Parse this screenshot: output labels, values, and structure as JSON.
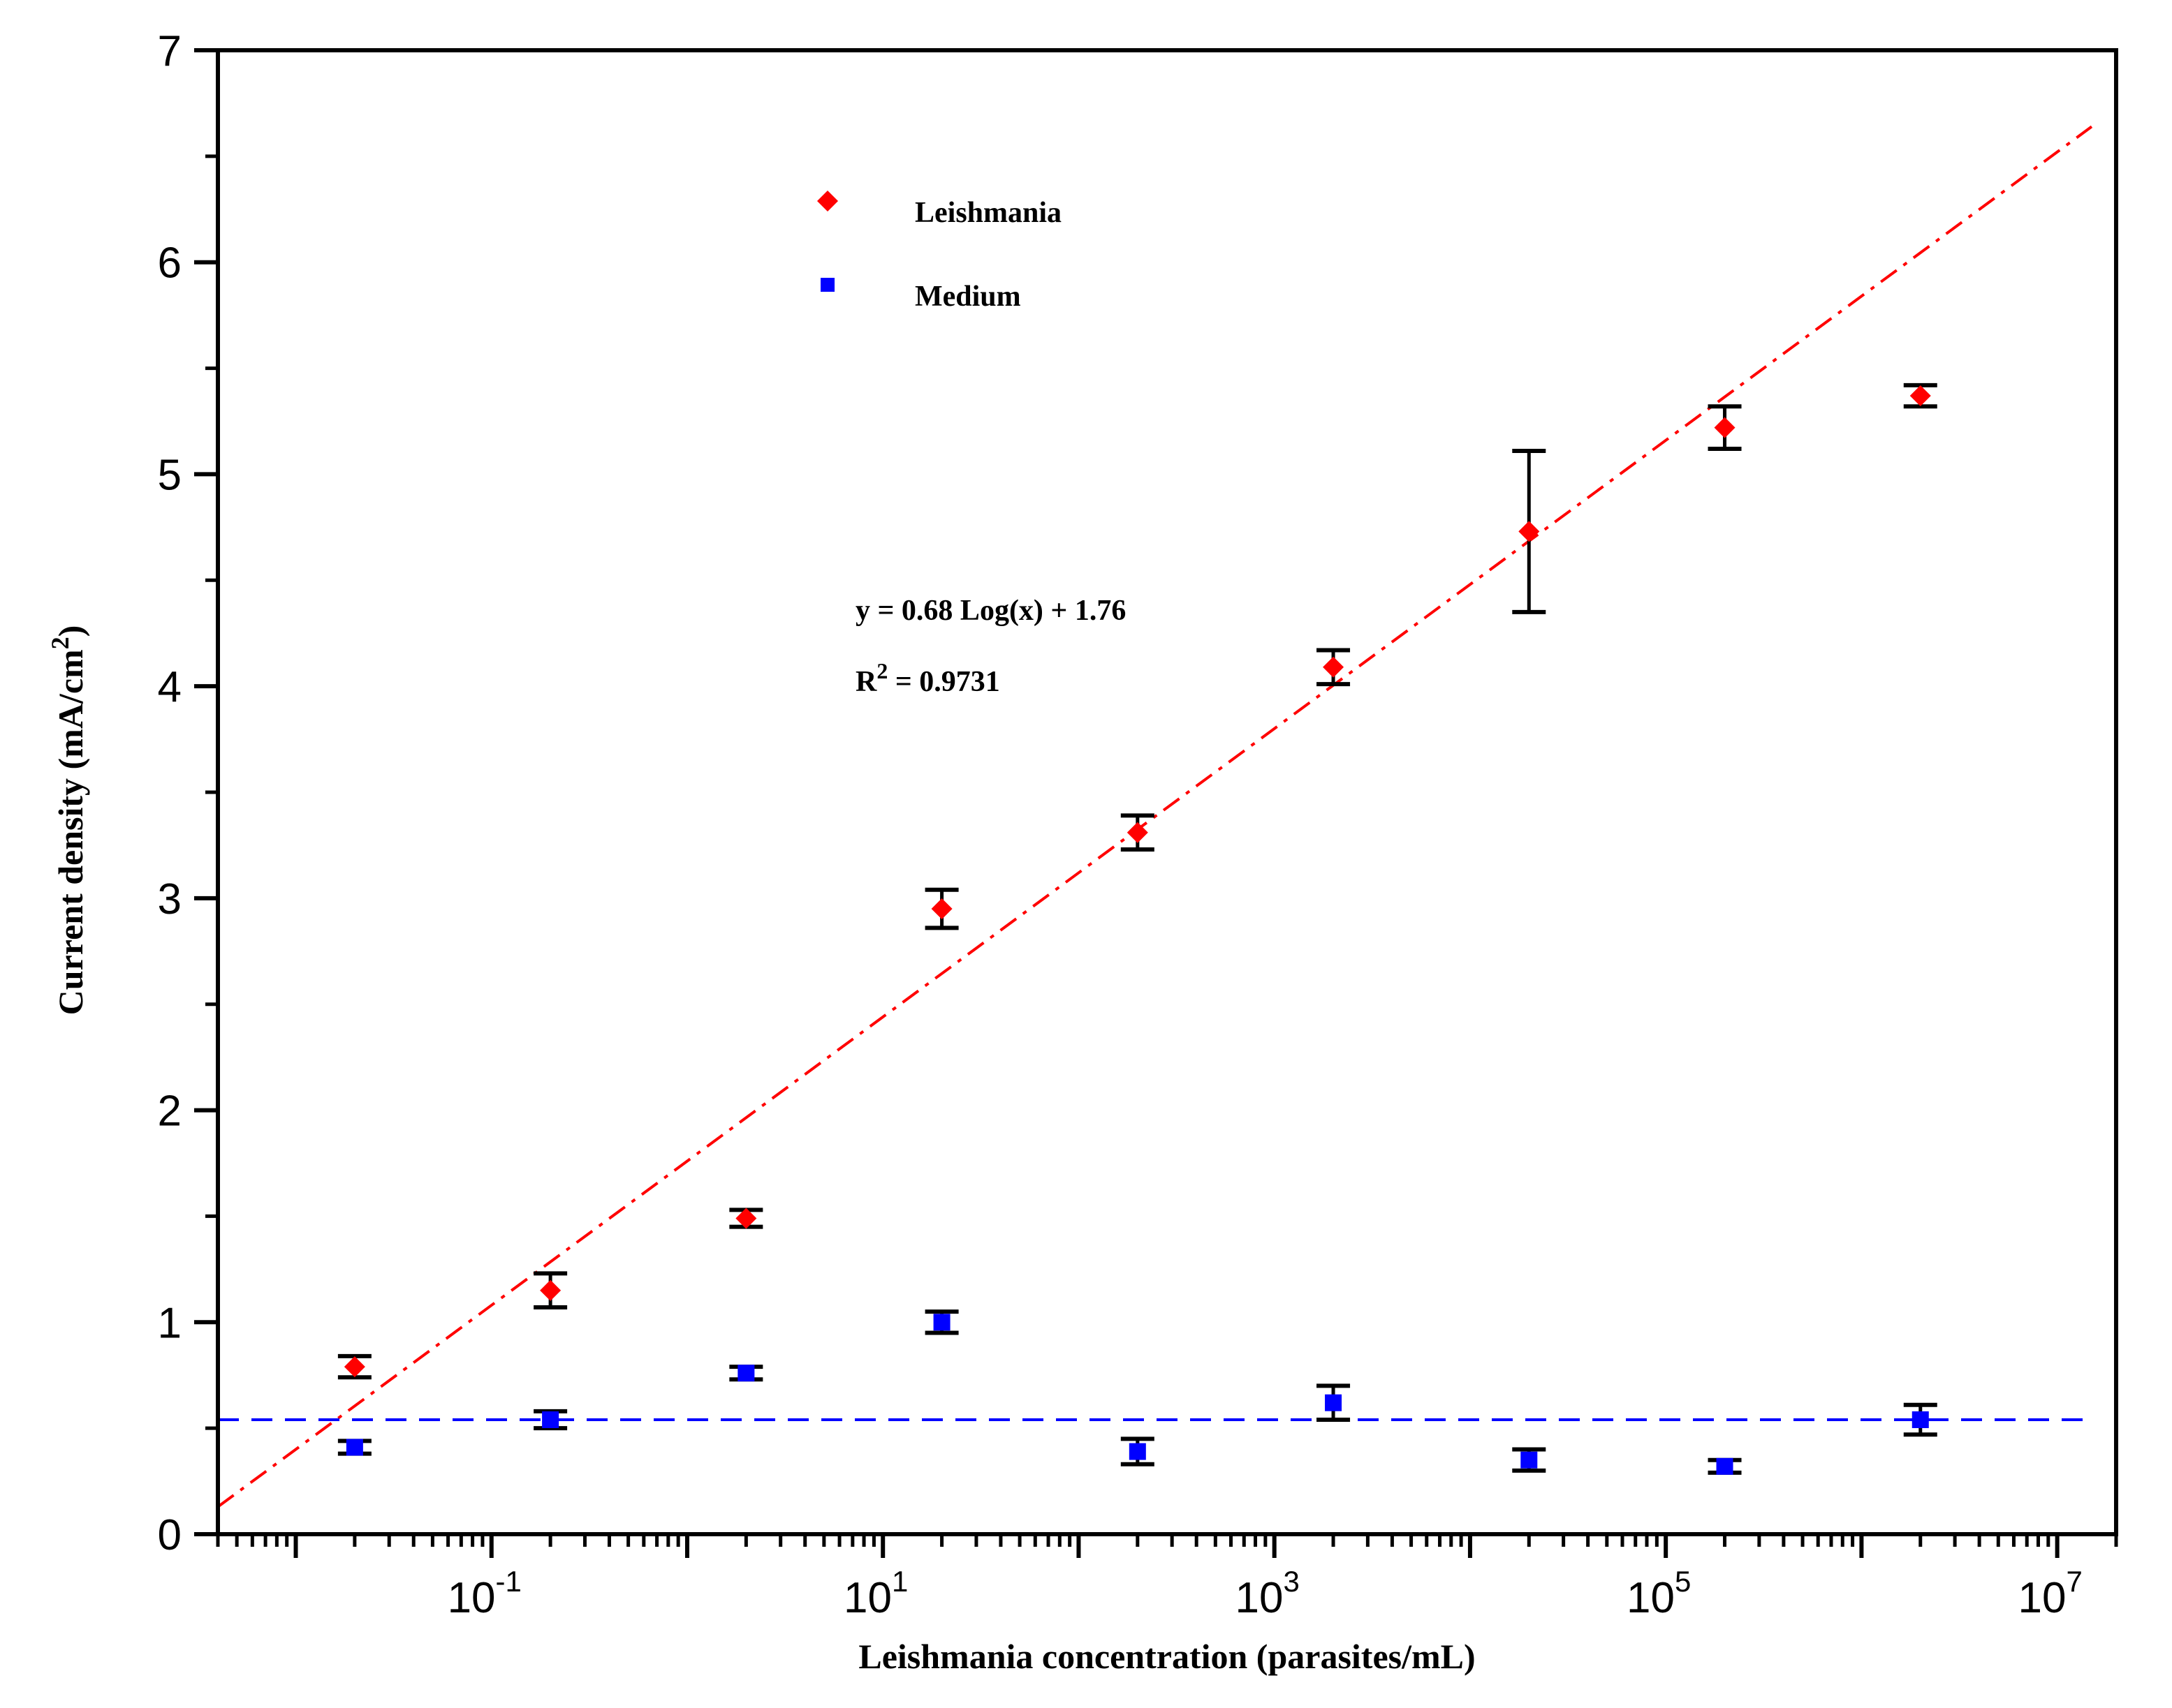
{
  "chart_data": {
    "type": "scatter",
    "xscale": "log",
    "xlabel": "Leishmania concentration (parasites/mL)",
    "ylabel": "Current density (mA/cm²)",
    "ylabel_main": "Current density (mA/cm",
    "ylabel_sup": "2",
    "ylabel_end": ")",
    "xlim": [
      0.004,
      20000000
    ],
    "ylim": [
      0,
      7
    ],
    "y_ticks": [
      "0",
      "1",
      "2",
      "3",
      "4",
      "5",
      "6",
      "7"
    ],
    "x_ticks": [
      {
        "base": "10",
        "exp": "-1"
      },
      {
        "base": "10",
        "exp": "1"
      },
      {
        "base": "10",
        "exp": "3"
      },
      {
        "base": "10",
        "exp": "5"
      },
      {
        "base": "10",
        "exp": "7"
      }
    ],
    "legend_position": "top-left",
    "series": [
      {
        "name": "Leishmania",
        "color": "#ff0000",
        "marker": "diamond",
        "x": [
          0.02,
          0.2,
          2,
          20,
          200,
          2000,
          20000,
          200000,
          2000000
        ],
        "y": [
          0.79,
          1.15,
          1.49,
          2.95,
          3.31,
          4.09,
          4.73,
          5.22,
          5.37
        ],
        "error": [
          0.05,
          0.08,
          0.04,
          0.09,
          0.08,
          0.08,
          0.38,
          0.1,
          0.05
        ]
      },
      {
        "name": "Medium",
        "color": "#0000ff",
        "marker": "square",
        "x": [
          0.02,
          0.2,
          2,
          20,
          200,
          2000,
          20000,
          200000,
          2000000
        ],
        "y": [
          0.41,
          0.54,
          0.76,
          1.0,
          0.39,
          0.62,
          0.35,
          0.32,
          0.54
        ],
        "error": [
          0.03,
          0.04,
          0.03,
          0.05,
          0.06,
          0.08,
          0.05,
          0.03,
          0.07
        ]
      }
    ],
    "fit_line": {
      "color": "#ff0000",
      "style": "dash-dot",
      "slope": 0.68,
      "intercept": 1.76,
      "x_range": [
        0.004,
        15000000
      ]
    },
    "baseline": {
      "color": "#0000ff",
      "style": "dashed",
      "y": 0.54,
      "x_range": [
        0.004,
        15000000
      ]
    },
    "annotations": {
      "equation": "y = 0.68 Log(x) + 1.76",
      "r2_main": "R",
      "r2_sup": "2",
      "r2_rest": " = 0.9731"
    }
  }
}
